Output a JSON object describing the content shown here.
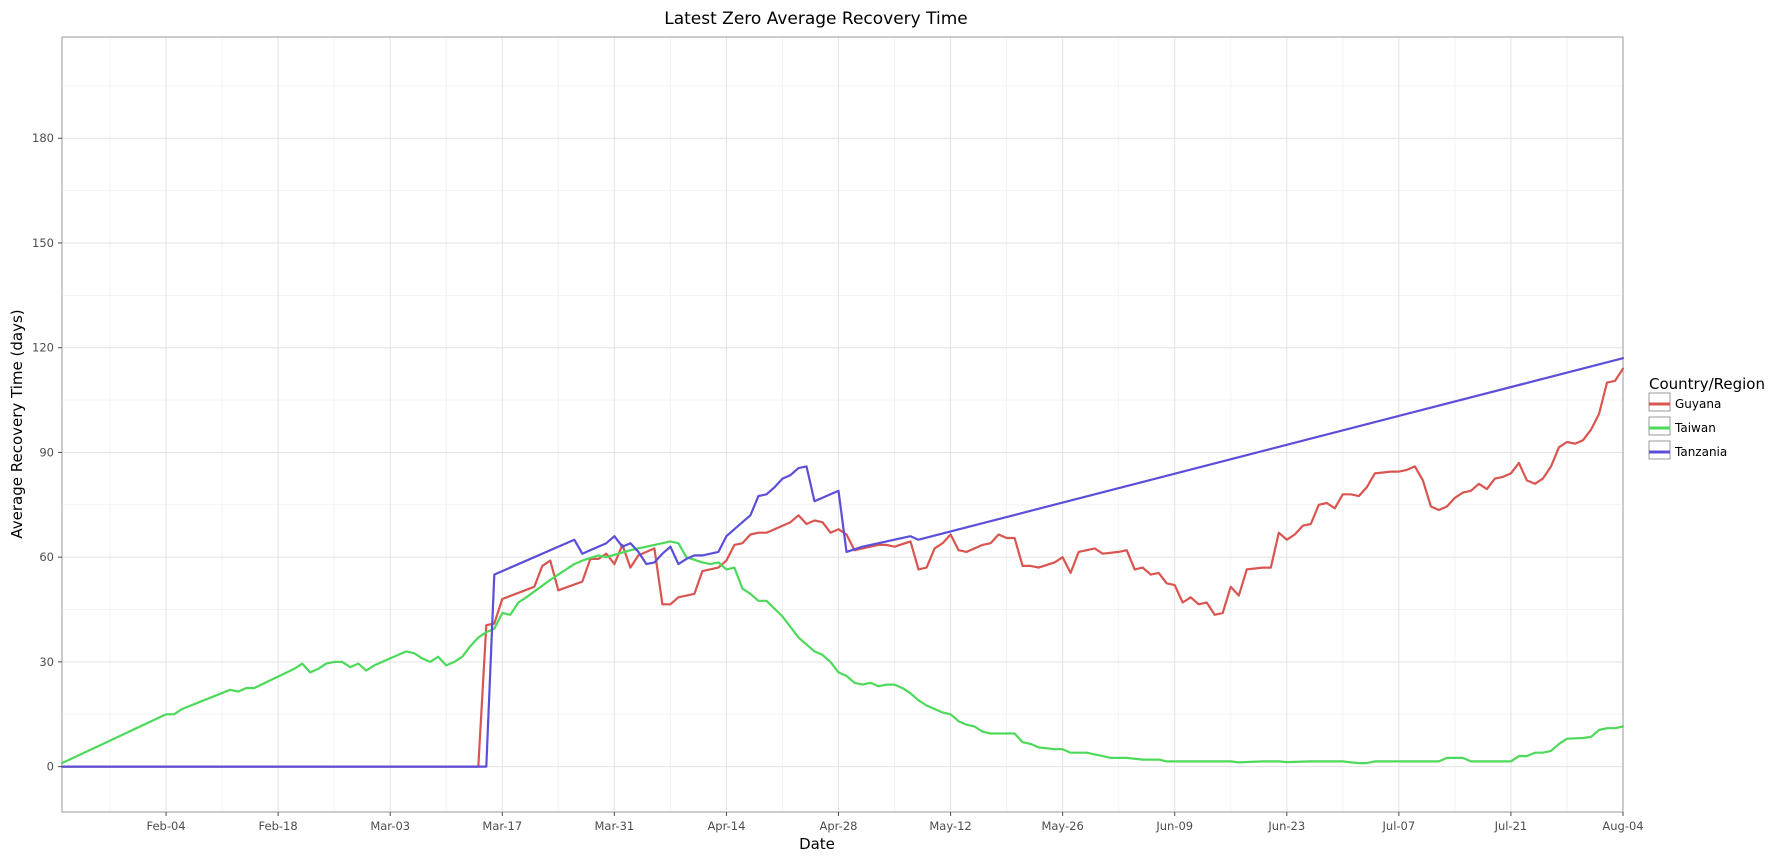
{
  "chart_data": {
    "type": "line",
    "title": "Latest Zero Average Recovery Time",
    "xlabel": "Date",
    "ylabel": "Average Recovery Time (days)",
    "x_start": "Jan-22",
    "x_end": "Aug-04",
    "ylim": [
      -13,
      209
    ],
    "y_ticks": [
      0,
      30,
      60,
      90,
      120,
      150,
      180
    ],
    "y_minor_step": 15,
    "x_ticks": [
      "Feb-04",
      "Feb-18",
      "Mar-03",
      "Mar-17",
      "Mar-31",
      "Apr-14",
      "Apr-28",
      "May-12",
      "May-26",
      "Jun-09",
      "Jun-23",
      "Jul-07",
      "Jul-21",
      "Aug-04"
    ],
    "x_tick_days": [
      13,
      27,
      41,
      55,
      69,
      83,
      97,
      111,
      125,
      139,
      153,
      167,
      181,
      195
    ],
    "grid": true,
    "legend": {
      "title": "Country/Region",
      "position": "right"
    },
    "series": [
      {
        "name": "Guyana",
        "color": "#d95550",
        "points": [
          [
            0,
            0
          ],
          [
            52,
            0
          ],
          [
            53,
            40.5
          ],
          [
            54,
            41
          ],
          [
            55,
            48
          ],
          [
            59,
            51.5
          ],
          [
            60,
            57.5
          ],
          [
            61,
            59
          ],
          [
            62,
            50.5
          ],
          [
            65,
            53
          ],
          [
            66,
            59.5
          ],
          [
            67,
            59.5
          ],
          [
            68,
            61
          ],
          [
            69,
            58
          ],
          [
            70,
            63.5
          ],
          [
            71,
            57
          ],
          [
            72,
            60.5
          ],
          [
            74,
            62.5
          ],
          [
            75,
            46.5
          ],
          [
            76,
            46.5
          ],
          [
            77,
            48.5
          ],
          [
            79,
            49.5
          ],
          [
            80,
            56
          ],
          [
            82,
            57
          ],
          [
            83,
            59
          ],
          [
            84,
            63.5
          ],
          [
            85,
            64
          ],
          [
            86,
            66.5
          ],
          [
            87,
            67
          ],
          [
            88,
            67
          ],
          [
            90,
            69
          ],
          [
            91,
            70
          ],
          [
            92,
            72
          ],
          [
            93,
            69.5
          ],
          [
            94,
            70.5
          ],
          [
            95,
            70
          ],
          [
            96,
            67
          ],
          [
            97,
            68
          ],
          [
            98,
            66.5
          ],
          [
            99,
            62
          ],
          [
            100,
            62.5
          ],
          [
            102,
            63.5
          ],
          [
            103,
            63.5
          ],
          [
            104,
            63
          ],
          [
            106,
            64.5
          ],
          [
            107,
            56.5
          ],
          [
            108,
            57
          ],
          [
            109,
            62.5
          ],
          [
            110,
            64
          ],
          [
            111,
            66.5
          ],
          [
            112,
            62
          ],
          [
            113,
            61.5
          ],
          [
            115,
            63.5
          ],
          [
            116,
            64
          ],
          [
            117,
            66.5
          ],
          [
            118,
            65.5
          ],
          [
            119,
            65.5
          ],
          [
            120,
            57.5
          ],
          [
            121,
            57.5
          ],
          [
            122,
            57
          ],
          [
            124,
            58.5
          ],
          [
            125,
            60
          ],
          [
            126,
            55.5
          ],
          [
            127,
            61.5
          ],
          [
            129,
            62.5
          ],
          [
            130,
            61
          ],
          [
            132,
            61.5
          ],
          [
            133,
            62
          ],
          [
            134,
            56.5
          ],
          [
            135,
            57
          ],
          [
            136,
            55
          ],
          [
            137,
            55.5
          ],
          [
            138,
            52.5
          ],
          [
            139,
            52
          ],
          [
            140,
            47
          ],
          [
            141,
            48.5
          ],
          [
            142,
            46.5
          ],
          [
            143,
            47
          ],
          [
            144,
            43.5
          ],
          [
            145,
            44
          ],
          [
            146,
            51.5
          ],
          [
            147,
            49
          ],
          [
            148,
            56.5
          ],
          [
            150,
            57
          ],
          [
            151,
            57
          ],
          [
            152,
            67
          ],
          [
            153,
            65
          ],
          [
            154,
            66.5
          ],
          [
            155,
            69
          ],
          [
            156,
            69.5
          ],
          [
            157,
            75
          ],
          [
            158,
            75.5
          ],
          [
            159,
            74
          ],
          [
            160,
            78
          ],
          [
            161,
            78
          ],
          [
            162,
            77.5
          ],
          [
            163,
            80
          ],
          [
            164,
            84
          ],
          [
            166,
            84.5
          ],
          [
            167,
            84.5
          ],
          [
            168,
            85
          ],
          [
            169,
            86
          ],
          [
            170,
            82
          ],
          [
            171,
            74.5
          ],
          [
            172,
            73.5
          ],
          [
            173,
            74.5
          ],
          [
            174,
            77
          ],
          [
            175,
            78.5
          ],
          [
            176,
            79
          ],
          [
            177,
            81
          ],
          [
            178,
            79.5
          ],
          [
            179,
            82.5
          ],
          [
            180,
            83
          ],
          [
            181,
            84
          ],
          [
            182,
            87
          ],
          [
            183,
            82
          ],
          [
            184,
            81
          ],
          [
            185,
            82.5
          ],
          [
            186,
            86
          ],
          [
            187,
            91.5
          ],
          [
            188,
            93
          ],
          [
            189,
            92.5
          ],
          [
            190,
            93.5
          ],
          [
            191,
            96.5
          ],
          [
            192,
            101
          ],
          [
            193,
            110
          ],
          [
            194,
            110.5
          ],
          [
            195,
            114
          ]
        ]
      },
      {
        "name": "Taiwan",
        "color": "#4dd95a",
        "points": [
          [
            0,
            1
          ],
          [
            13,
            15
          ],
          [
            14,
            15
          ],
          [
            15,
            16.5
          ],
          [
            21,
            22
          ],
          [
            22,
            21.5
          ],
          [
            23,
            22.5
          ],
          [
            24,
            22.5
          ],
          [
            29,
            28
          ],
          [
            30,
            29.5
          ],
          [
            31,
            27
          ],
          [
            32,
            28
          ],
          [
            33,
            29.5
          ],
          [
            34,
            30
          ],
          [
            35,
            30
          ],
          [
            36,
            28.5
          ],
          [
            37,
            29.5
          ],
          [
            38,
            27.5
          ],
          [
            39,
            29
          ],
          [
            40,
            30
          ],
          [
            42,
            32
          ],
          [
            43,
            33
          ],
          [
            44,
            32.5
          ],
          [
            45,
            31
          ],
          [
            46,
            30
          ],
          [
            47,
            31.5
          ],
          [
            48,
            29
          ],
          [
            49,
            30
          ],
          [
            50,
            31.5
          ],
          [
            51,
            34.5
          ],
          [
            52,
            37
          ],
          [
            53,
            38.5
          ],
          [
            54,
            39.5
          ],
          [
            55,
            44
          ],
          [
            56,
            43.5
          ],
          [
            57,
            47
          ],
          [
            58,
            48.5
          ],
          [
            61,
            53.5
          ],
          [
            64,
            58
          ],
          [
            65,
            59
          ],
          [
            67,
            60.5
          ],
          [
            68,
            60
          ],
          [
            71,
            62
          ],
          [
            74,
            63.5
          ],
          [
            75,
            64
          ],
          [
            76,
            64.5
          ],
          [
            77,
            64
          ],
          [
            78,
            60
          ],
          [
            80,
            58.5
          ],
          [
            81,
            58
          ],
          [
            82,
            58.5
          ],
          [
            83,
            56.5
          ],
          [
            84,
            57
          ],
          [
            85,
            51
          ],
          [
            86,
            49.5
          ],
          [
            87,
            47.5
          ],
          [
            88,
            47.5
          ],
          [
            90,
            43
          ],
          [
            91,
            40
          ],
          [
            92,
            37
          ],
          [
            93,
            35
          ],
          [
            94,
            33
          ],
          [
            95,
            32
          ],
          [
            96,
            30
          ],
          [
            97,
            27
          ],
          [
            98,
            26
          ],
          [
            99,
            24
          ],
          [
            100,
            23.5
          ],
          [
            101,
            24
          ],
          [
            102,
            23
          ],
          [
            103,
            23.5
          ],
          [
            104,
            23.5
          ],
          [
            105,
            22.5
          ],
          [
            106,
            21
          ],
          [
            107,
            19
          ],
          [
            108,
            17.5
          ],
          [
            109,
            16.5
          ],
          [
            110,
            15.5
          ],
          [
            111,
            15
          ],
          [
            112,
            13
          ],
          [
            113,
            12
          ],
          [
            114,
            11.5
          ],
          [
            115,
            10
          ],
          [
            116,
            9.5
          ],
          [
            119,
            9.5
          ],
          [
            120,
            7
          ],
          [
            121,
            6.5
          ],
          [
            122,
            5.5
          ],
          [
            124,
            5
          ],
          [
            125,
            5
          ],
          [
            126,
            4
          ],
          [
            128,
            4
          ],
          [
            129,
            3.5
          ],
          [
            130,
            3
          ],
          [
            131,
            2.5
          ],
          [
            133,
            2.5
          ],
          [
            135,
            2
          ],
          [
            137,
            2
          ],
          [
            138,
            1.5
          ],
          [
            143,
            1.5
          ],
          [
            146,
            1.5
          ],
          [
            147,
            1.2
          ],
          [
            150,
            1.5
          ],
          [
            152,
            1.5
          ],
          [
            153,
            1.3
          ],
          [
            156,
            1.5
          ],
          [
            158,
            1.5
          ],
          [
            160,
            1.5
          ],
          [
            161,
            1.2
          ],
          [
            162,
            1
          ],
          [
            163,
            1
          ],
          [
            164,
            1.5
          ],
          [
            172,
            1.5
          ],
          [
            173,
            2.5
          ],
          [
            174,
            2.5
          ],
          [
            175,
            2.5
          ],
          [
            176,
            1.5
          ],
          [
            181,
            1.5
          ],
          [
            182,
            3
          ],
          [
            183,
            3
          ],
          [
            184,
            4
          ],
          [
            185,
            4
          ],
          [
            186,
            4.5
          ],
          [
            187,
            6.5
          ],
          [
            188,
            8
          ],
          [
            190,
            8.2
          ],
          [
            191,
            8.5
          ],
          [
            192,
            10.5
          ],
          [
            193,
            11
          ],
          [
            194,
            11
          ],
          [
            195,
            11.5
          ]
        ]
      },
      {
        "name": "Tanzania",
        "color": "#5b4fd9",
        "points": [
          [
            0,
            0
          ],
          [
            53,
            0
          ],
          [
            54,
            55
          ],
          [
            64,
            65
          ],
          [
            65,
            61
          ],
          [
            66,
            62
          ],
          [
            67,
            63
          ],
          [
            68,
            64
          ],
          [
            69,
            66
          ],
          [
            70,
            63
          ],
          [
            71,
            64
          ],
          [
            72,
            61.5
          ],
          [
            73,
            58
          ],
          [
            74,
            58.5
          ],
          [
            75,
            61
          ],
          [
            76,
            63
          ],
          [
            77,
            58
          ],
          [
            78,
            59.5
          ],
          [
            79,
            60.5
          ],
          [
            80,
            60.5
          ],
          [
            82,
            61.5
          ],
          [
            83,
            66
          ],
          [
            85,
            70
          ],
          [
            86,
            72
          ],
          [
            87,
            77.5
          ],
          [
            88,
            78
          ],
          [
            89,
            80
          ],
          [
            90,
            82.5
          ],
          [
            91,
            83.5
          ],
          [
            92,
            85.5
          ],
          [
            93,
            86
          ],
          [
            94,
            76
          ],
          [
            97,
            79
          ],
          [
            98,
            61.5
          ],
          [
            100,
            63
          ],
          [
            101,
            63.5
          ],
          [
            103,
            64.5
          ],
          [
            106,
            66
          ],
          [
            107,
            65
          ],
          [
            195,
            117
          ]
        ]
      }
    ]
  }
}
